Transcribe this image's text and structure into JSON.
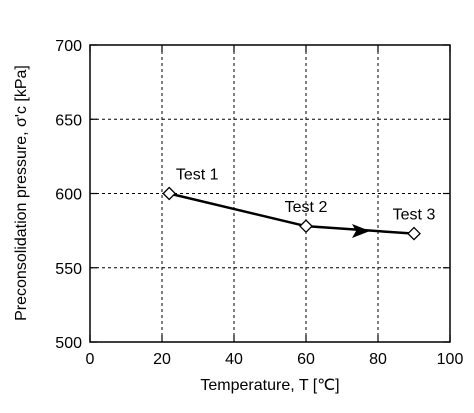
{
  "chart_data": {
    "type": "line",
    "x_label": "Temperature, T [℃]",
    "y_label": "Preconsolidation pressure, σ'c [kPa]",
    "series": [
      {
        "x": [
          22,
          60,
          90
        ],
        "values": [
          600,
          578,
          573
        ],
        "color": "#000000"
      }
    ],
    "annotations": [
      "Test 1",
      "Test 2",
      "Test 3"
    ],
    "xlim": [
      0,
      100
    ],
    "xticks": [
      0,
      20,
      40,
      60,
      80,
      100
    ],
    "ylim": [
      500,
      700
    ],
    "yticks": [
      500,
      550,
      600,
      650,
      700
    ],
    "grid": true
  }
}
